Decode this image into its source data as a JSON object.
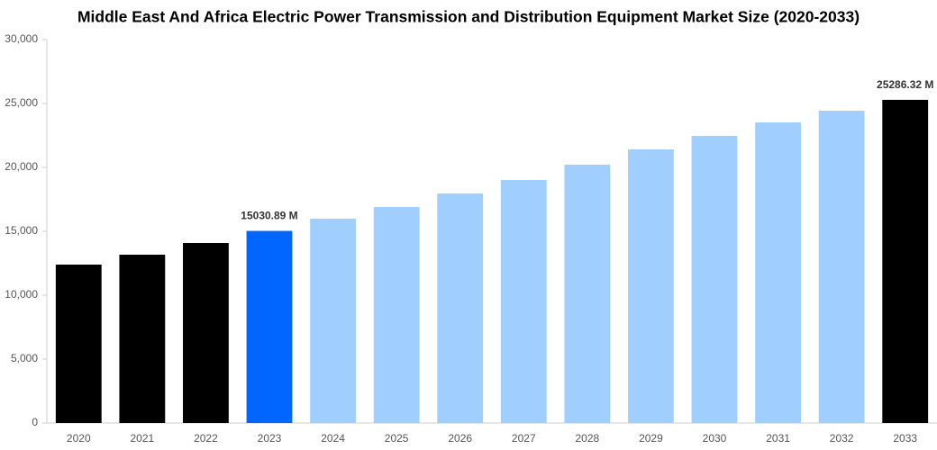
{
  "chart_data": {
    "type": "bar",
    "title": "Middle East And Africa Electric Power Transmission and Distribution Equipment Market Size (2020-2033)",
    "categories": [
      "2020",
      "2021",
      "2022",
      "2023",
      "2024",
      "2025",
      "2026",
      "2027",
      "2028",
      "2029",
      "2030",
      "2031",
      "2032",
      "2033"
    ],
    "values": [
      12394,
      13169,
      14085,
      15030.89,
      15986,
      16901,
      17958,
      19014,
      20211,
      21408,
      22465,
      23521,
      24437,
      25286.32
    ],
    "value_labels": [
      null,
      null,
      null,
      "15030.89 M",
      null,
      null,
      null,
      null,
      null,
      null,
      null,
      null,
      null,
      "25286.32 M"
    ],
    "colors": [
      "#000000",
      "#000000",
      "#000000",
      "#0066ff",
      "#a0cfff",
      "#a0cfff",
      "#a0cfff",
      "#a0cfff",
      "#a0cfff",
      "#a0cfff",
      "#a0cfff",
      "#a0cfff",
      "#a0cfff",
      "#000000"
    ],
    "ylim": [
      0,
      30000
    ],
    "yticks": [
      0,
      {
        "value": 5000,
        "label": "5,000"
      },
      {
        "value": 10000,
        "label": "10,000"
      },
      {
        "value": 15000,
        "label": "15,000"
      },
      {
        "value": 20000,
        "label": "20,000"
      },
      {
        "value": 25000,
        "label": "25,000"
      },
      {
        "value": 30000,
        "label": "30,000"
      }
    ],
    "grid": false
  }
}
